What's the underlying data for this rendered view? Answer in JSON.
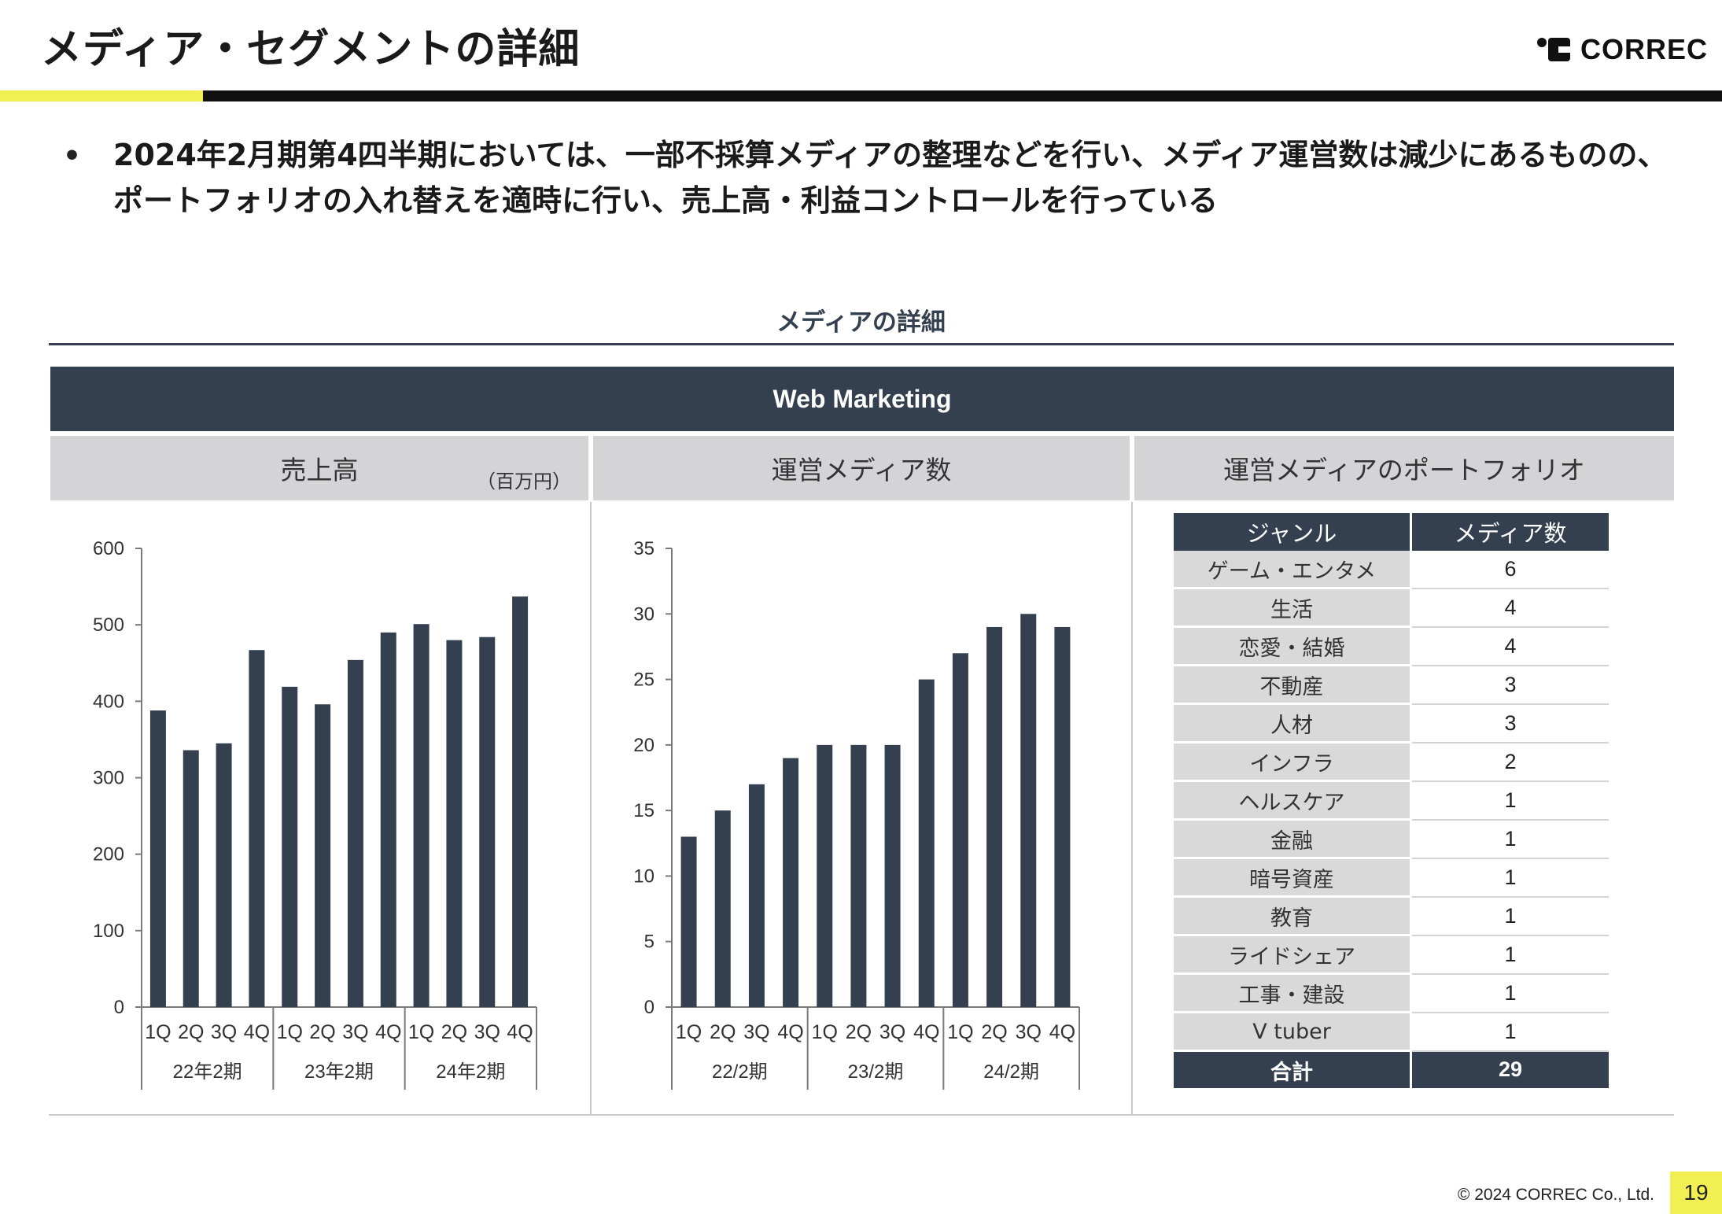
{
  "header": {
    "title": "メディア・セグメントの詳細",
    "logo_text": "CORREC"
  },
  "bullet": {
    "text": "2024年2月期第4四半期においては、一部不採算メディアの整理などを行い、メディア運営数は減少にあるものの、ポートフォリオの入れ替えを適時に行い、売上高・利益コントロールを行っている"
  },
  "section": {
    "title": "メディアの詳細",
    "band": "Web Marketing",
    "panels": {
      "revenue": "売上高",
      "unit": "（百万円）",
      "media_count": "運営メディア数",
      "portfolio": "運営メディアのポートフォリオ"
    }
  },
  "colors": {
    "navy": "#344050",
    "accent_yellow": "#f2ef52",
    "header_gray": "#d4d4d6"
  },
  "chart_data": [
    {
      "type": "bar",
      "title": "売上高",
      "unit": "（百万円）",
      "categories": [
        "1Q",
        "2Q",
        "3Q",
        "4Q",
        "1Q",
        "2Q",
        "3Q",
        "4Q",
        "1Q",
        "2Q",
        "3Q",
        "4Q"
      ],
      "groups": [
        "22年2期",
        "23年2期",
        "24年2期"
      ],
      "values": [
        388,
        336,
        345,
        467,
        419,
        396,
        454,
        490,
        501,
        480,
        484,
        537
      ],
      "ylim": [
        0,
        600
      ],
      "yticks": [
        0,
        100,
        200,
        300,
        400,
        500,
        600
      ],
      "grid": false,
      "bar_color": "#344050"
    },
    {
      "type": "bar",
      "title": "運営メディア数",
      "categories": [
        "1Q",
        "2Q",
        "3Q",
        "4Q",
        "1Q",
        "2Q",
        "3Q",
        "4Q",
        "1Q",
        "2Q",
        "3Q",
        "4Q"
      ],
      "groups": [
        "22/2期",
        "23/2期",
        "24/2期"
      ],
      "values": [
        13,
        15,
        17,
        19,
        20,
        20,
        20,
        25,
        27,
        29,
        30,
        29
      ],
      "ylim": [
        0,
        35
      ],
      "yticks": [
        0,
        5,
        10,
        15,
        20,
        25,
        30,
        35
      ],
      "grid": false,
      "bar_color": "#344050"
    },
    {
      "type": "table",
      "title": "運営メディアのポートフォリオ",
      "columns": [
        "ジャンル",
        "メディア数"
      ],
      "rows": [
        [
          "ゲーム・エンタメ",
          "6"
        ],
        [
          "生活",
          "4"
        ],
        [
          "恋愛・結婚",
          "4"
        ],
        [
          "不動産",
          "3"
        ],
        [
          "人材",
          "3"
        ],
        [
          "インフラ",
          "2"
        ],
        [
          "ヘルスケア",
          "1"
        ],
        [
          "金融",
          "1"
        ],
        [
          "暗号資産",
          "1"
        ],
        [
          "教育",
          "1"
        ],
        [
          "ライドシェア",
          "1"
        ],
        [
          "工事・建設",
          "1"
        ],
        [
          "V tuber",
          "1"
        ]
      ],
      "total_label": "合計",
      "total_value": "29"
    }
  ],
  "footer": {
    "copyright": "© 2024 CORREC Co., Ltd.",
    "page": "19"
  }
}
